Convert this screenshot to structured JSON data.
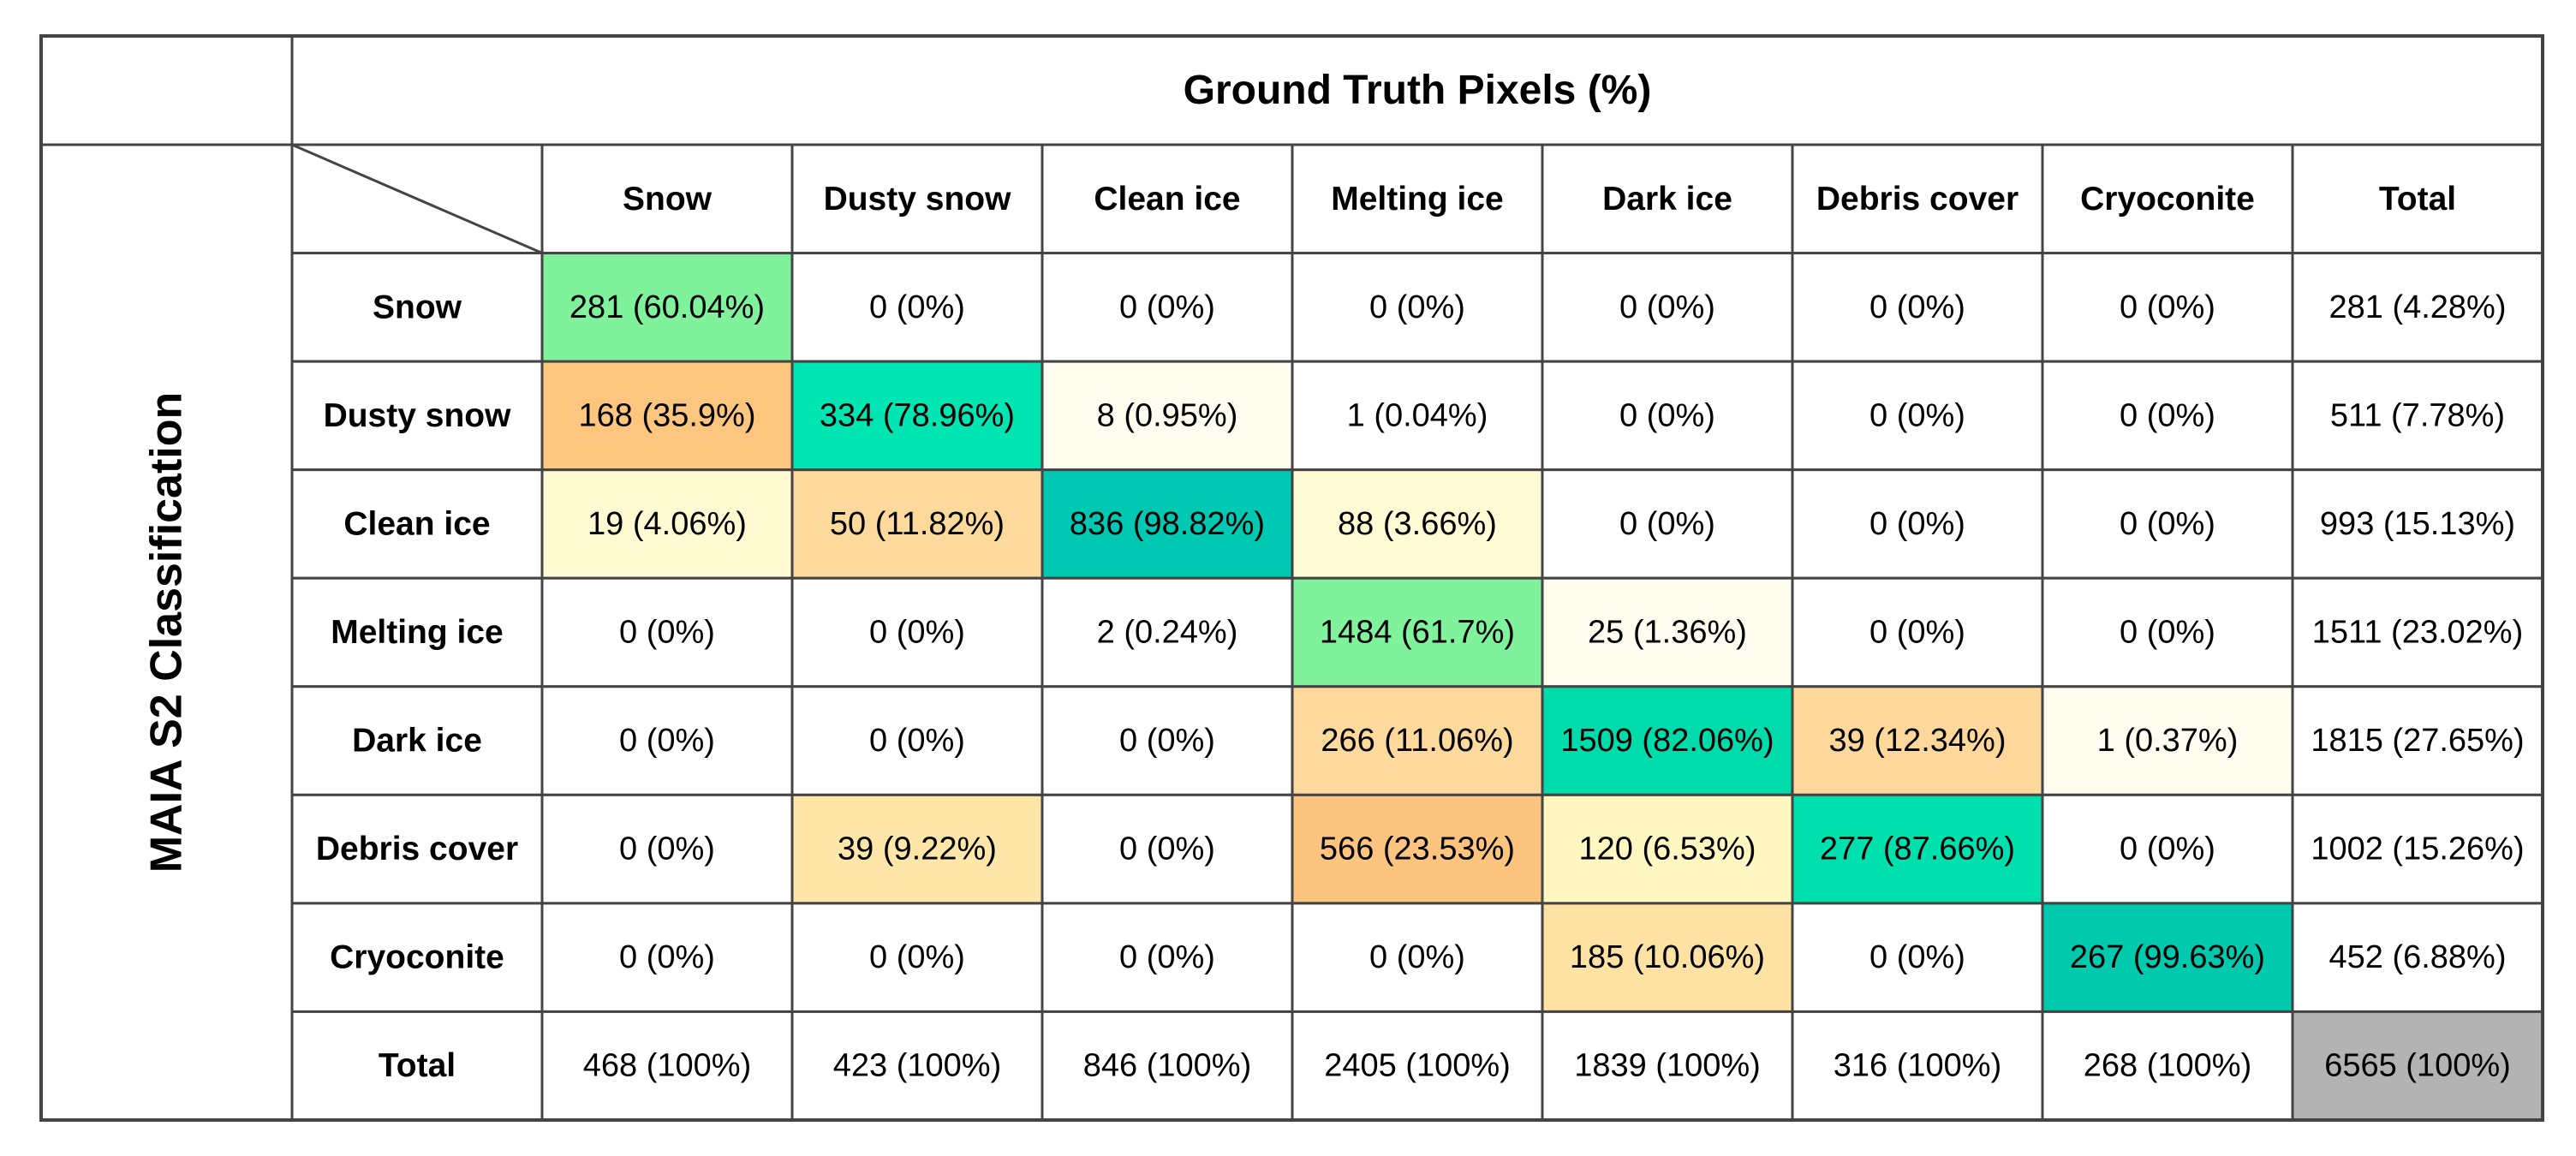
{
  "table": {
    "title": "Ground Truth Pixels (%)",
    "row_axis_label": "MAIA S2 Classification",
    "columns": [
      "Snow",
      "Dusty snow",
      "Clean ice",
      "Melting ice",
      "Dark ice",
      "Debris cover",
      "Cryoconite",
      "Total"
    ],
    "rows": [
      {
        "label": "Snow",
        "cells": [
          "281 (60.04%)",
          "0 (0%)",
          "0 (0%)",
          "0 (0%)",
          "0 (0%)",
          "0 (0%)",
          "0 (0%)",
          "281 (4.28%)"
        ],
        "colors": [
          "#80f29c",
          null,
          null,
          null,
          null,
          null,
          null,
          null
        ]
      },
      {
        "label": "Dusty snow",
        "cells": [
          "168 (35.9%)",
          "334 (78.96%)",
          "8 (0.95%)",
          "1 (0.04%)",
          "0 (0%)",
          "0 (0%)",
          "0 (0%)",
          "511 (7.78%)"
        ],
        "colors": [
          "#fcc67f",
          "#00e5b2",
          "#fffdf0",
          null,
          null,
          null,
          null,
          null
        ]
      },
      {
        "label": "Clean ice",
        "cells": [
          "19 (4.06%)",
          "50 (11.82%)",
          "836 (98.82%)",
          "88 (3.66%)",
          "0 (0%)",
          "0 (0%)",
          "0 (0%)",
          "993 (15.13%)"
        ],
        "colors": [
          "#fffad2",
          "#fdda9c",
          "#00c8b2",
          "#fffbd5",
          null,
          null,
          null,
          null
        ]
      },
      {
        "label": "Melting ice",
        "cells": [
          "0 (0%)",
          "0 (0%)",
          "2 (0.24%)",
          "1484 (61.7%)",
          "25 (1.36%)",
          "0 (0%)",
          "0 (0%)",
          "1511 (23.02%)"
        ],
        "colors": [
          null,
          null,
          null,
          "#80f29c",
          "#fffdf0",
          null,
          null,
          null
        ]
      },
      {
        "label": "Dark ice",
        "cells": [
          "0 (0%)",
          "0 (0%)",
          "0 (0%)",
          "266 (11.06%)",
          "1509 (82.06%)",
          "39 (12.34%)",
          "1 (0.37%)",
          "1815 (27.65%)"
        ],
        "colors": [
          null,
          null,
          null,
          "#fdd99b",
          "#00dbab",
          "#fdd89a",
          "#fffdf0",
          null
        ]
      },
      {
        "label": "Debris cover",
        "cells": [
          "0 (0%)",
          "39 (9.22%)",
          "0 (0%)",
          "566 (23.53%)",
          "120 (6.53%)",
          "277 (87.66%)",
          "0 (0%)",
          "1002 (15.26%)"
        ],
        "colors": [
          null,
          "#fee5a8",
          null,
          "#fcc47e",
          "#fff6c2",
          "#00e0ae",
          null,
          null
        ]
      },
      {
        "label": "Cryoconite",
        "cells": [
          "0 (0%)",
          "0 (0%)",
          "0 (0%)",
          "0 (0%)",
          "185 (10.06%)",
          "0 (0%)",
          "267 (99.63%)",
          "452 (6.88%)"
        ],
        "colors": [
          null,
          null,
          null,
          null,
          "#fde2a4",
          null,
          "#00c9ae",
          null
        ]
      },
      {
        "label": "Total",
        "cells": [
          "468 (100%)",
          "423 (100%)",
          "846 (100%)",
          "2405 (100%)",
          "1839 (100%)",
          "316 (100%)",
          "268 (100%)",
          "6565 (100%)"
        ],
        "colors": [
          null,
          null,
          null,
          null,
          null,
          null,
          null,
          "#b3b3b3"
        ]
      }
    ]
  }
}
